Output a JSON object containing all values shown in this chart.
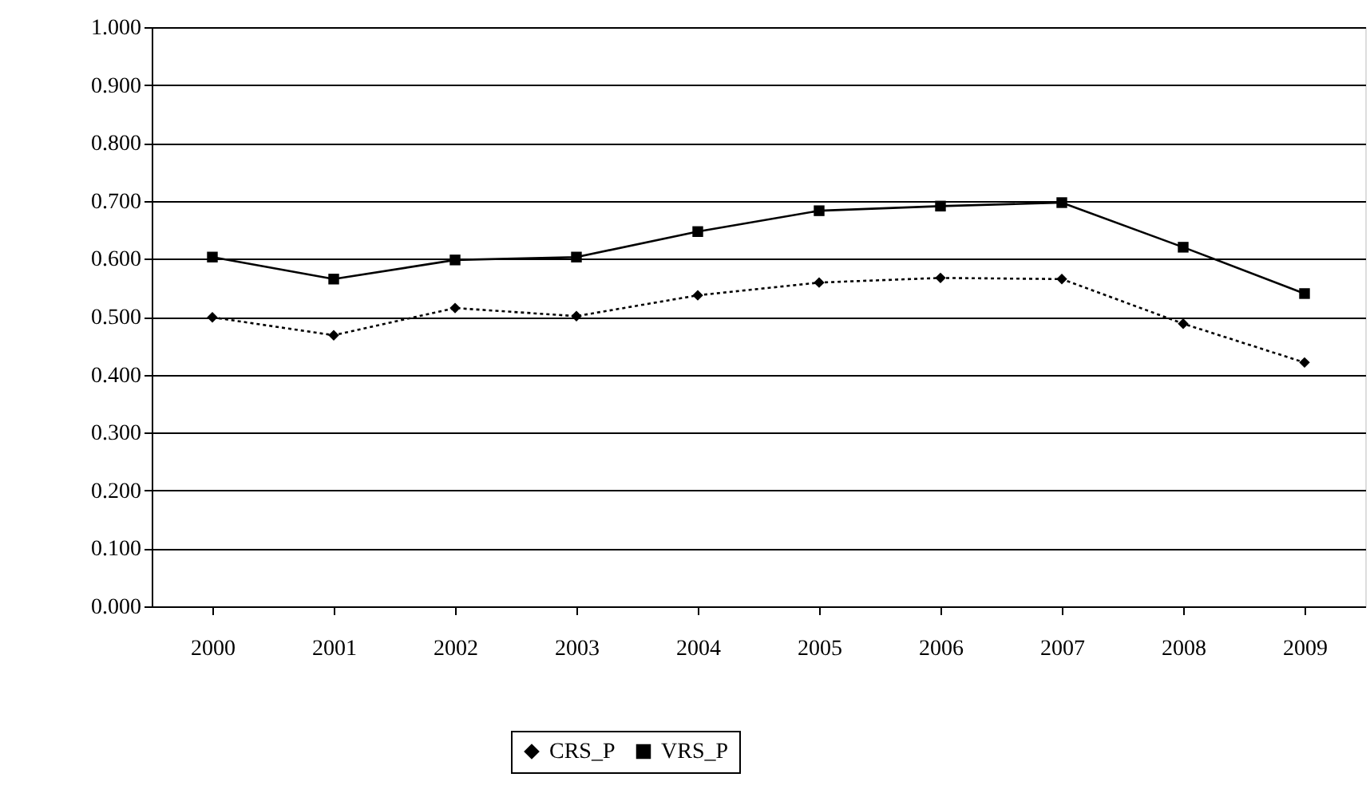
{
  "chart_data": {
    "type": "line",
    "categories": [
      "2000",
      "2001",
      "2002",
      "2003",
      "2004",
      "2005",
      "2006",
      "2007",
      "2008",
      "2009"
    ],
    "series": [
      {
        "name": "CRS_P",
        "color": "#000000",
        "line_style": "dotted",
        "marker": "diamond",
        "values": [
          0.499,
          0.468,
          0.515,
          0.501,
          0.537,
          0.559,
          0.567,
          0.565,
          0.488,
          0.421
        ]
      },
      {
        "name": "VRS_P",
        "color": "#000000",
        "line_style": "solid",
        "marker": "square",
        "values": [
          0.603,
          0.565,
          0.598,
          0.603,
          0.647,
          0.683,
          0.691,
          0.697,
          0.62,
          0.54
        ]
      }
    ],
    "ylim": [
      0,
      1
    ],
    "yticks": [
      {
        "value": 0,
        "label": "0.000"
      },
      {
        "value": 0.1,
        "label": "0.100"
      },
      {
        "value": 0.2,
        "label": "0.200"
      },
      {
        "value": 0.3,
        "label": "0.300"
      },
      {
        "value": 0.4,
        "label": "0.400"
      },
      {
        "value": 0.5,
        "label": "0.500"
      },
      {
        "value": 0.6,
        "label": "0.600"
      },
      {
        "value": 0.7,
        "label": "0.700"
      },
      {
        "value": 0.8,
        "label": "0.800"
      },
      {
        "value": 0.9,
        "label": "0.900"
      },
      {
        "value": 1.0,
        "label": "1.000"
      }
    ],
    "grid": "y",
    "legend": "bottom"
  }
}
